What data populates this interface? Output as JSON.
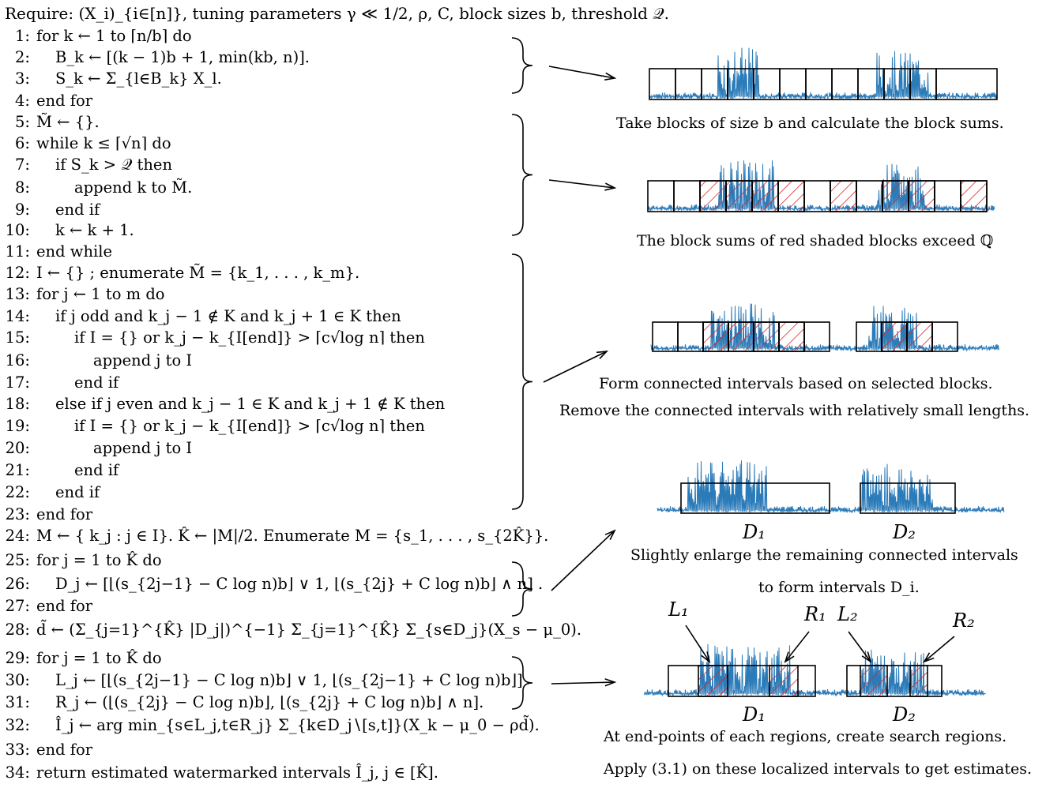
{
  "algorithm": {
    "require": "Require: (X_i)_{i∈[n]}, tuning parameters γ ≪ 1/2, ρ, C, block sizes b, threshold 𝒬.",
    "lines": [
      {
        "n": "1:",
        "indent": 0,
        "text": "for k ← 1 to ⌈n/b⌉ do"
      },
      {
        "n": "2:",
        "indent": 1,
        "text": "B_k ← [(k − 1)b + 1, min(kb, n)]."
      },
      {
        "n": "3:",
        "indent": 1,
        "text": "S_k ← Σ_{l∈B_k} X_l."
      },
      {
        "n": "4:",
        "indent": 0,
        "text": "end for"
      },
      {
        "n": "5:",
        "indent": 0,
        "text": "M̃ ← {}."
      },
      {
        "n": "6:",
        "indent": 0,
        "text": "while k ≤ ⌈√n⌉ do"
      },
      {
        "n": "7:",
        "indent": 1,
        "text": "if S_k > 𝒬 then"
      },
      {
        "n": "8:",
        "indent": 2,
        "text": "append k to M̃."
      },
      {
        "n": "9:",
        "indent": 1,
        "text": "end if"
      },
      {
        "n": "10:",
        "indent": 1,
        "text": "k ← k + 1."
      },
      {
        "n": "11:",
        "indent": 0,
        "text": "end while"
      },
      {
        "n": "12:",
        "indent": 0,
        "text": "I ← {} ; enumerate M̃ = {k_1, . . . , k_m}."
      },
      {
        "n": "13:",
        "indent": 0,
        "text": "for j ← 1 to m do"
      },
      {
        "n": "14:",
        "indent": 1,
        "text": "if j odd and k_j − 1 ∉ K and k_j + 1 ∈ K then"
      },
      {
        "n": "15:",
        "indent": 2,
        "text": "if I = {} or k_j − k_{I[end]} > ⌈c√log n⌉ then"
      },
      {
        "n": "16:",
        "indent": 3,
        "text": "append j to I"
      },
      {
        "n": "17:",
        "indent": 2,
        "text": "end if"
      },
      {
        "n": "18:",
        "indent": 1,
        "text": "else if j even and k_j − 1 ∈ K and k_j + 1 ∉ K then"
      },
      {
        "n": "19:",
        "indent": 2,
        "text": "if I = {} or k_j − k_{I[end]} > ⌈c√log n⌉ then"
      },
      {
        "n": "20:",
        "indent": 3,
        "text": "append j to I"
      },
      {
        "n": "21:",
        "indent": 2,
        "text": "end if"
      },
      {
        "n": "22:",
        "indent": 1,
        "text": "end if"
      },
      {
        "n": "23:",
        "indent": 0,
        "text": "end for"
      },
      {
        "n": "24:",
        "indent": 0,
        "text": "M ← { k_j : j ∈ I}. K̂ ← |M|/2. Enumerate M = {s_1, . . . , s_{2K̂}}."
      },
      {
        "n": "25:",
        "indent": 0,
        "text": "for j = 1 to K̂ do"
      },
      {
        "n": "26:",
        "indent": 1,
        "text": "D_j ← [⌊(s_{2j−1} − C log n)b⌋ ∨ 1, ⌊(s_{2j} + C log n)b⌋ ∧ n] ."
      },
      {
        "n": "27:",
        "indent": 0,
        "text": "end for"
      },
      {
        "n": "28:",
        "indent": 0,
        "text": "d̃ ← (Σ_{j=1}^{K̂} |D_j|)^{−1} Σ_{j=1}^{K̂} Σ_{s∈D_j}(X_s − μ_0)."
      },
      {
        "n": "29:",
        "indent": 0,
        "text": "for j = 1 to K̂ do"
      },
      {
        "n": "30:",
        "indent": 1,
        "text": "L_j ← [⌊(s_{2j−1} − C log n)b⌋ ∨ 1, ⌊(s_{2j−1} + C log n)b⌋]"
      },
      {
        "n": "31:",
        "indent": 1,
        "text": "R_j ← (⌊(s_{2j} − C log n)b⌋, ⌊(s_{2j} + C log n)b⌋ ∧ n]."
      },
      {
        "n": "32:",
        "indent": 1,
        "text": "Î_j ← arg min_{s∈L_j,t∈R_j} Σ_{k∈D_j∖[s,t]}(X_k − μ_0 − ρd̃)."
      },
      {
        "n": "33:",
        "indent": 0,
        "text": "end for"
      },
      {
        "n": "34:",
        "indent": 0,
        "text": "return estimated watermarked intervals Î_j, j ∈ [K̂]."
      }
    ]
  },
  "figure": {
    "captions": {
      "step1": "Take blocks of size b and calculate the block sums.",
      "step2": "The block sums of red shaded blocks exceed ℚ",
      "step3a": "Form connected intervals based on selected blocks.",
      "step3b": "Remove the connected intervals with relatively small lengths.",
      "step4a": "Slightly enlarge the remaining connected intervals",
      "step4b": "to form intervals D_i.",
      "step5a": "At end-points of each regions, create search regions.",
      "step5b": "Apply (3.1) on these localized intervals to get estimates."
    },
    "labels": {
      "d1": "D₁",
      "d2": "D₂",
      "l1": "L₁",
      "r1": "R₁",
      "l2": "L₂",
      "r2": "R₂"
    },
    "colors": {
      "signal": "#2b7bb9",
      "hatch": "#d62728",
      "box": "#000000"
    }
  }
}
